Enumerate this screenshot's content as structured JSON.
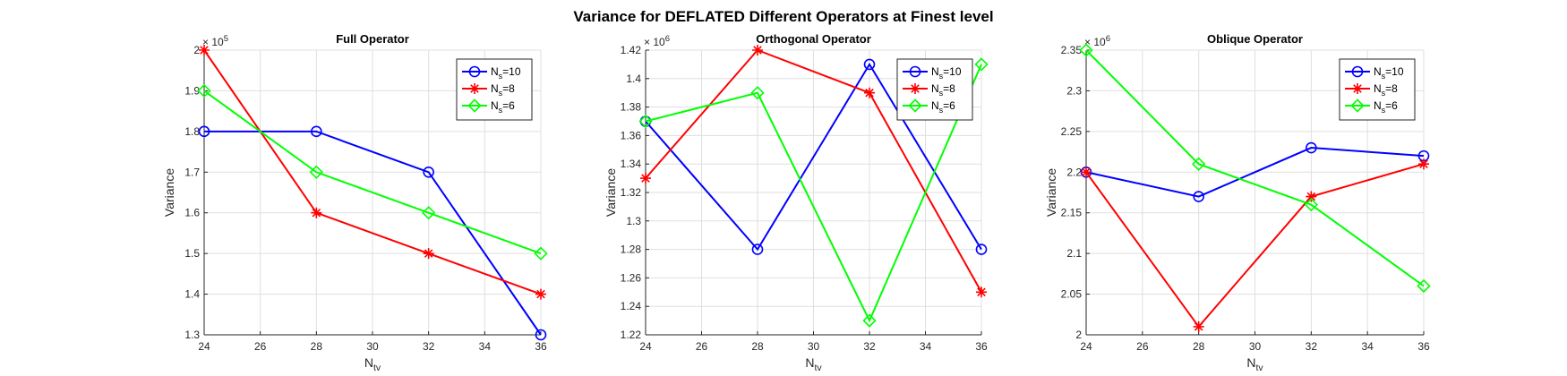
{
  "figure_title": "Variance for DEFLATED Different Operators at Finest level",
  "chart_data": [
    {
      "type": "line",
      "title": "Full Operator",
      "xlabel_main": "N",
      "xlabel_sub": "tv",
      "ylabel": "Variance",
      "exponent_label": "× 10",
      "exponent": "5",
      "x": [
        24,
        28,
        32,
        36
      ],
      "xlim": [
        24,
        36
      ],
      "ylim": [
        1.3,
        2.0
      ],
      "x_ticks": [
        24,
        26,
        28,
        30,
        32,
        34,
        36
      ],
      "y_ticks": [
        1.3,
        1.4,
        1.5,
        1.6,
        1.7,
        1.8,
        1.9,
        2
      ],
      "y_tick_labels": [
        "1.3",
        "1.4",
        "1.5",
        "1.6",
        "1.7",
        "1.8",
        "1.9",
        "2"
      ],
      "grid": true,
      "legend_position": "top-right",
      "series": [
        {
          "legend_main": "N",
          "legend_sub": "s",
          "legend_rest": "=10",
          "color": "#0000ff",
          "marker": "circle",
          "values": [
            1.8,
            1.8,
            1.7,
            1.3
          ]
        },
        {
          "legend_main": "N",
          "legend_sub": "s",
          "legend_rest": "=8",
          "color": "#ff0000",
          "marker": "asterisk",
          "values": [
            2.0,
            1.6,
            1.5,
            1.4
          ]
        },
        {
          "legend_main": "N",
          "legend_sub": "s",
          "legend_rest": "=6",
          "color": "#00ff00",
          "marker": "diamond",
          "values": [
            1.9,
            1.7,
            1.6,
            1.5
          ]
        }
      ]
    },
    {
      "type": "line",
      "title": "Orthogonal Operator",
      "xlabel_main": "N",
      "xlabel_sub": "tv",
      "ylabel": "Variance",
      "exponent_label": "× 10",
      "exponent": "6",
      "x": [
        24,
        28,
        32,
        36
      ],
      "xlim": [
        24,
        36
      ],
      "ylim": [
        1.22,
        1.42
      ],
      "x_ticks": [
        24,
        26,
        28,
        30,
        32,
        34,
        36
      ],
      "y_ticks": [
        1.22,
        1.24,
        1.26,
        1.28,
        1.3,
        1.32,
        1.34,
        1.36,
        1.38,
        1.4,
        1.42
      ],
      "y_tick_labels": [
        "1.22",
        "1.24",
        "1.26",
        "1.28",
        "1.3",
        "1.32",
        "1.34",
        "1.36",
        "1.38",
        "1.4",
        "1.42"
      ],
      "grid": true,
      "legend_position": "top-right",
      "series": [
        {
          "legend_main": "N",
          "legend_sub": "s",
          "legend_rest": "=10",
          "color": "#0000ff",
          "marker": "circle",
          "values": [
            1.37,
            1.28,
            1.41,
            1.28
          ]
        },
        {
          "legend_main": "N",
          "legend_sub": "s",
          "legend_rest": "=8",
          "color": "#ff0000",
          "marker": "asterisk",
          "values": [
            1.33,
            1.42,
            1.39,
            1.25
          ]
        },
        {
          "legend_main": "N",
          "legend_sub": "s",
          "legend_rest": "=6",
          "color": "#00ff00",
          "marker": "diamond",
          "values": [
            1.37,
            1.39,
            1.23,
            1.41
          ]
        }
      ]
    },
    {
      "type": "line",
      "title": "Oblique Operator",
      "xlabel_main": "N",
      "xlabel_sub": "tv",
      "ylabel": "Variance",
      "exponent_label": "× 10",
      "exponent": "6",
      "x": [
        24,
        28,
        32,
        36
      ],
      "xlim": [
        24,
        36
      ],
      "ylim": [
        2.0,
        2.35
      ],
      "x_ticks": [
        24,
        26,
        28,
        30,
        32,
        34,
        36
      ],
      "y_ticks": [
        2,
        2.05,
        2.1,
        2.15,
        2.2,
        2.25,
        2.3,
        2.35
      ],
      "y_tick_labels": [
        "2",
        "2.05",
        "2.1",
        "2.15",
        "2.2",
        "2.25",
        "2.3",
        "2.35"
      ],
      "grid": true,
      "legend_position": "top-right",
      "series": [
        {
          "legend_main": "N",
          "legend_sub": "s",
          "legend_rest": "=10",
          "color": "#0000ff",
          "marker": "circle",
          "values": [
            2.2,
            2.17,
            2.23,
            2.22
          ]
        },
        {
          "legend_main": "N",
          "legend_sub": "s",
          "legend_rest": "=8",
          "color": "#ff0000",
          "marker": "asterisk",
          "values": [
            2.2,
            2.01,
            2.17,
            2.21
          ]
        },
        {
          "legend_main": "N",
          "legend_sub": "s",
          "legend_rest": "=6",
          "color": "#00ff00",
          "marker": "diamond",
          "values": [
            2.35,
            2.21,
            2.16,
            2.06
          ]
        }
      ]
    }
  ]
}
